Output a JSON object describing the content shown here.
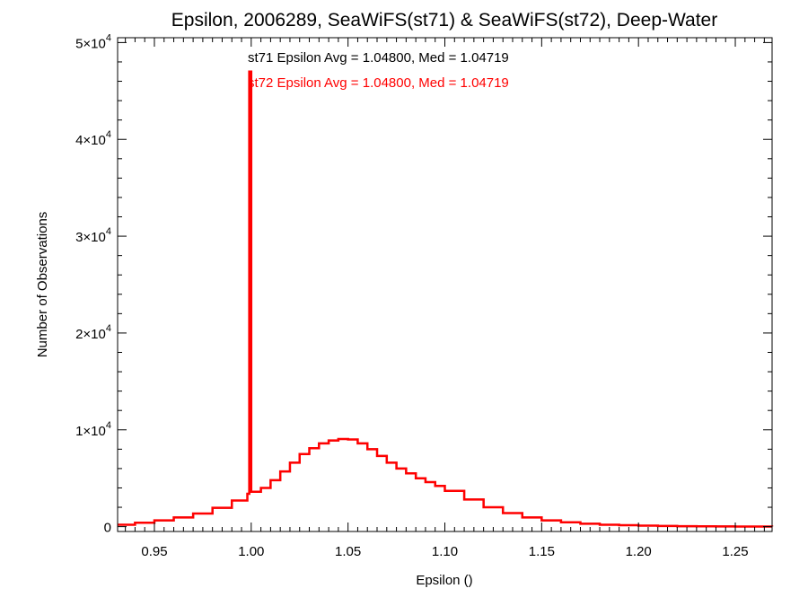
{
  "chart_data": {
    "type": "histogram-step",
    "title": "Epsilon, 2006289, SeaWiFS(st71) & SeaWiFS(st72), Deep-Water",
    "xlabel": "Epsilon ()",
    "ylabel": "Number of Observations",
    "xlim": [
      0.931,
      1.269
    ],
    "ylim": [
      -500,
      50500
    ],
    "x_ticks": [
      0.95,
      1.0,
      1.05,
      1.1,
      1.15,
      1.2,
      1.25
    ],
    "x_tick_labels": [
      "0.95",
      "1.00",
      "1.05",
      "1.10",
      "1.15",
      "1.20",
      "1.25"
    ],
    "y_ticks": [
      0,
      10000,
      20000,
      30000,
      40000,
      50000
    ],
    "y_tick_labels": [
      {
        "mantissa": "0",
        "exponent": ""
      },
      {
        "mantissa": "1×10",
        "exponent": "4"
      },
      {
        "mantissa": "2×10",
        "exponent": "4"
      },
      {
        "mantissa": "3×10",
        "exponent": "4"
      },
      {
        "mantissa": "4×10",
        "exponent": "4"
      },
      {
        "mantissa": "5×10",
        "exponent": "4"
      }
    ],
    "grid": false,
    "annotations": [
      {
        "text": "st71 Epsilon Avg = 1.04800, Med = 1.04719",
        "color": "#000000"
      },
      {
        "text": "st72 Epsilon Avg = 1.04800, Med = 1.04719",
        "color": "#ff0000"
      }
    ],
    "series": [
      {
        "name": "st71",
        "color": "#000000",
        "x": [
          0.931,
          0.94,
          0.95,
          0.96,
          0.97,
          0.98,
          0.99,
          0.998,
          0.999,
          1.0,
          1.005,
          1.01,
          1.015,
          1.02,
          1.025,
          1.03,
          1.035,
          1.04,
          1.045,
          1.05,
          1.055,
          1.06,
          1.065,
          1.07,
          1.075,
          1.08,
          1.085,
          1.09,
          1.095,
          1.1,
          1.11,
          1.12,
          1.13,
          1.14,
          1.15,
          1.16,
          1.17,
          1.18,
          1.19,
          1.2,
          1.21,
          1.22,
          1.23,
          1.24,
          1.25,
          1.269
        ],
        "y": [
          200,
          400,
          650,
          950,
          1350,
          1950,
          2700,
          3400,
          47000,
          3600,
          4000,
          4800,
          5700,
          6600,
          7500,
          8100,
          8600,
          8900,
          9050,
          9000,
          8600,
          8000,
          7300,
          6600,
          6000,
          5500,
          5000,
          4600,
          4200,
          3700,
          2800,
          2000,
          1400,
          950,
          650,
          450,
          300,
          200,
          150,
          100,
          70,
          50,
          30,
          20,
          10,
          5
        ]
      },
      {
        "name": "st72",
        "color": "#ff0000",
        "x": [
          0.931,
          0.94,
          0.95,
          0.96,
          0.97,
          0.98,
          0.99,
          0.998,
          0.999,
          1.0,
          1.005,
          1.01,
          1.015,
          1.02,
          1.025,
          1.03,
          1.035,
          1.04,
          1.045,
          1.05,
          1.055,
          1.06,
          1.065,
          1.07,
          1.075,
          1.08,
          1.085,
          1.09,
          1.095,
          1.1,
          1.11,
          1.12,
          1.13,
          1.14,
          1.15,
          1.16,
          1.17,
          1.18,
          1.19,
          1.2,
          1.21,
          1.22,
          1.23,
          1.24,
          1.25,
          1.269
        ],
        "y": [
          200,
          400,
          650,
          950,
          1350,
          1950,
          2700,
          3400,
          47000,
          3600,
          4000,
          4800,
          5700,
          6600,
          7500,
          8100,
          8600,
          8900,
          9050,
          9000,
          8600,
          8000,
          7300,
          6600,
          6000,
          5500,
          5000,
          4600,
          4200,
          3700,
          2800,
          2000,
          1400,
          950,
          650,
          450,
          300,
          200,
          150,
          100,
          70,
          50,
          30,
          20,
          10,
          5
        ]
      }
    ]
  }
}
